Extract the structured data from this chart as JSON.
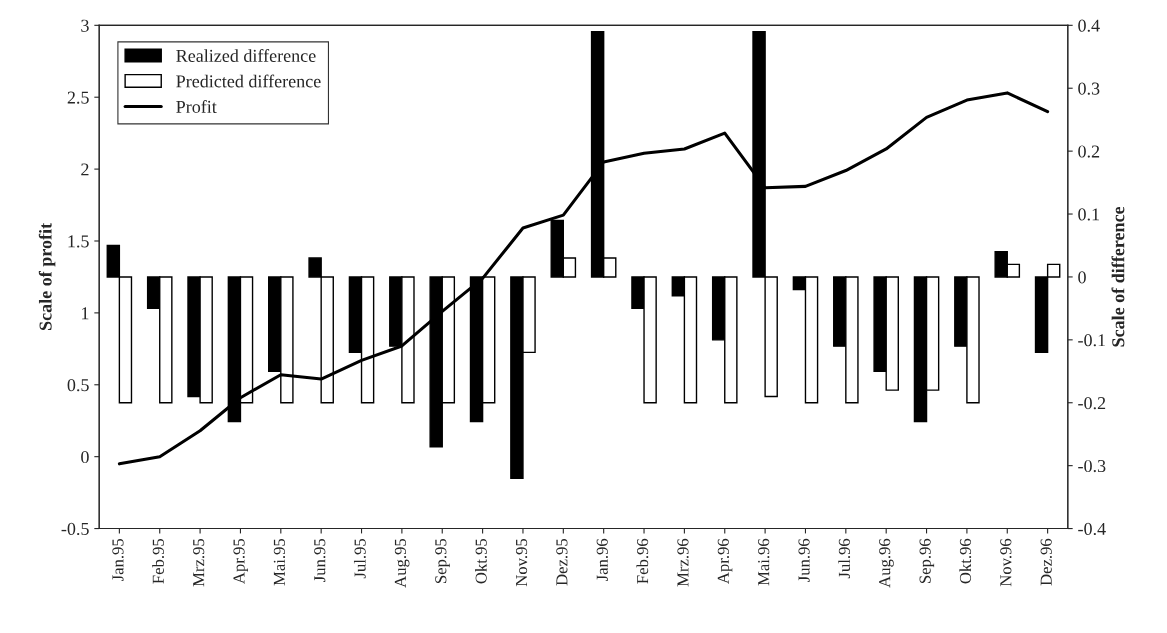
{
  "chart_data": {
    "type": "bar",
    "categories": [
      "Jan.95",
      "Feb.95",
      "Mrz.95",
      "Apr.95",
      "Mai.95",
      "Jun.95",
      "Jul.95",
      "Aug.95",
      "Sep.95",
      "Okt.95",
      "Nov.95",
      "Dez.95",
      "Jan.96",
      "Feb.96",
      "Mrz.96",
      "Apr.96",
      "Mai.96",
      "Jun.96",
      "Jul.96",
      "Aug.96",
      "Sep.96",
      "Okt.96",
      "Nov.96",
      "Dez.96"
    ],
    "series": [
      {
        "name": "Realized difference",
        "axis": "y2",
        "color": "#000000",
        "values": [
          0.05,
          -0.05,
          -0.19,
          -0.23,
          -0.15,
          0.03,
          -0.12,
          -0.11,
          -0.27,
          -0.23,
          -0.32,
          0.09,
          0.39,
          -0.05,
          -0.03,
          -0.1,
          0.39,
          -0.02,
          -0.11,
          -0.15,
          -0.23,
          -0.11,
          0.04,
          -0.12
        ]
      },
      {
        "name": "Predicted difference",
        "axis": "y2",
        "color": "#ffffff",
        "values": [
          -0.2,
          -0.2,
          -0.2,
          -0.2,
          -0.2,
          -0.2,
          -0.2,
          -0.2,
          -0.2,
          -0.2,
          -0.12,
          0.03,
          0.03,
          -0.2,
          -0.2,
          -0.2,
          -0.19,
          -0.2,
          -0.2,
          -0.18,
          -0.18,
          -0.2,
          0.02,
          0.02
        ]
      },
      {
        "name": "Profit",
        "type": "line",
        "axis": "y",
        "color": "#000000",
        "values": [
          -0.05,
          0.0,
          0.18,
          0.41,
          0.57,
          0.54,
          0.67,
          0.77,
          1.01,
          1.24,
          1.59,
          1.68,
          2.05,
          2.11,
          2.14,
          2.25,
          1.87,
          1.88,
          1.99,
          2.14,
          2.36,
          2.48,
          2.53,
          2.4
        ]
      }
    ],
    "ylabel": "Scale of profit",
    "y2label": "Scale of difference",
    "ylim": [
      -0.5,
      3
    ],
    "yticks": [
      -0.5,
      0,
      0.5,
      1,
      1.5,
      2,
      2.5,
      3
    ],
    "y2lim": [
      -0.4,
      0.4
    ],
    "y2ticks": [
      -0.4,
      -0.3,
      -0.2,
      -0.1,
      0,
      0.1,
      0.2,
      0.3,
      0.4
    ],
    "legend": "top left",
    "grid": false
  }
}
